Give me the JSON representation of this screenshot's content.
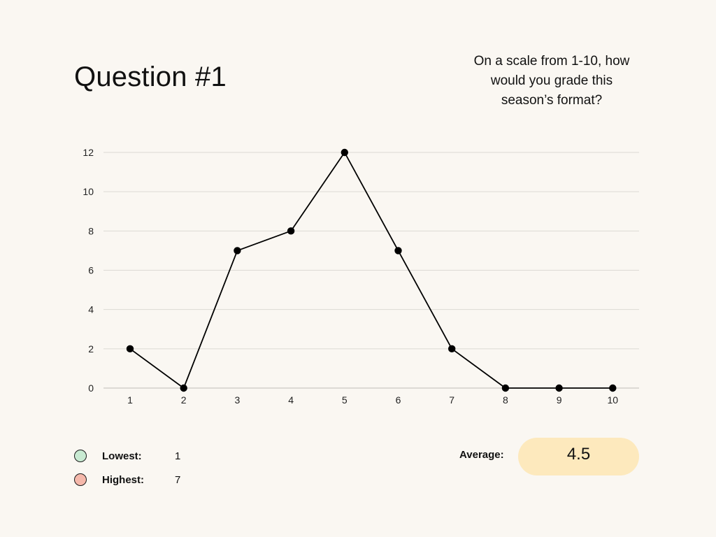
{
  "header": {
    "title": "Question #1",
    "question_lines": [
      "On a scale from 1-10, how",
      "would you grade this",
      "season’s format?"
    ]
  },
  "chart_data": {
    "type": "line",
    "x": [
      1,
      2,
      3,
      4,
      5,
      6,
      7,
      8,
      9,
      10
    ],
    "y": [
      2,
      0,
      7,
      8,
      12,
      7,
      2,
      0,
      0,
      0
    ],
    "xticks": [
      "1",
      "2",
      "3",
      "4",
      "5",
      "6",
      "7",
      "8",
      "9",
      "10"
    ],
    "yticks": [
      "0",
      "2",
      "4",
      "6",
      "8",
      "10",
      "12"
    ],
    "ylim": [
      0,
      12
    ],
    "grid": true,
    "line_color": "#000000",
    "grid_color": "#dcdad4"
  },
  "legend": {
    "lowest": {
      "label": "Lowest:",
      "value": "1",
      "color": "#c8ead2"
    },
    "highest": {
      "label": "Highest:",
      "value": "7",
      "color": "#f5b8ab"
    }
  },
  "summary": {
    "average_label": "Average:",
    "average_value": "4.5",
    "pill_color": "#fde9bd"
  }
}
